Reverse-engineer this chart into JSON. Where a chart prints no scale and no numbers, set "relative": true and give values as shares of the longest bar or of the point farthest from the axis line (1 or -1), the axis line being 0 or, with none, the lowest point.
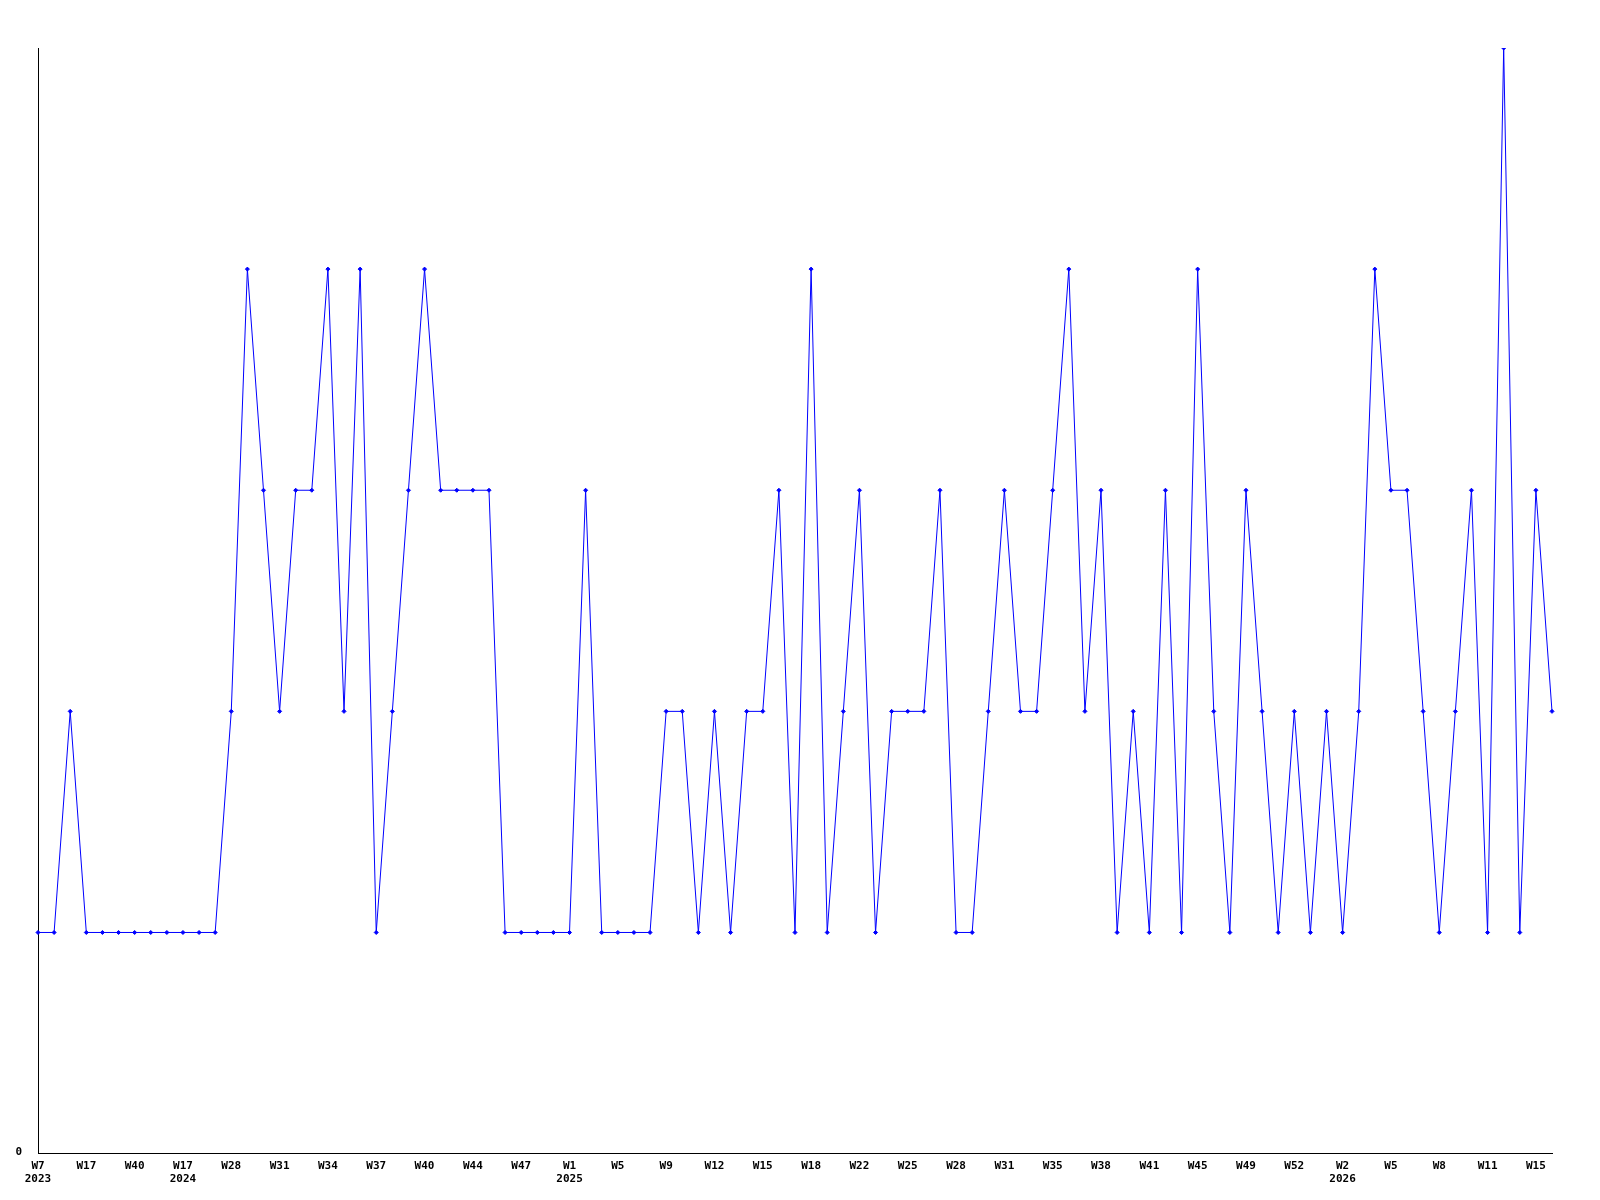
{
  "chart_data": {
    "type": "line",
    "relative": true,
    "annotations": [
      "0"
    ],
    "marker": "diamond",
    "grid": false,
    "legend": false,
    "categories": [
      "W7 2023",
      null,
      null,
      "W17",
      null,
      null,
      "W40",
      null,
      null,
      "W17 2024",
      null,
      null,
      "W28",
      null,
      null,
      "W31",
      null,
      null,
      "W34",
      null,
      null,
      "W37",
      null,
      null,
      "W40",
      null,
      null,
      "W44",
      null,
      null,
      "W47",
      null,
      null,
      "W1 2025",
      null,
      null,
      "W5",
      null,
      null,
      "W9",
      null,
      null,
      "W12",
      null,
      null,
      "W15",
      null,
      null,
      "W18",
      null,
      null,
      "W22",
      null,
      null,
      "W25",
      null,
      null,
      "W28",
      null,
      null,
      "W31",
      null,
      null,
      "W35",
      null,
      null,
      "W38",
      null,
      null,
      "W41",
      null,
      null,
      "W45",
      null,
      null,
      "W49",
      null,
      null,
      "W52",
      null,
      null,
      "W2 2026",
      null,
      null,
      "W5",
      null,
      null,
      "W8",
      null,
      null,
      "W11",
      null,
      null,
      "W15",
      null
    ],
    "series": [
      {
        "color": "#0000ff",
        "values": [
          0.2,
          0.2,
          0.4,
          0.2,
          0.2,
          0.2,
          0.2,
          0.2,
          0.2,
          0.2,
          0.2,
          0.2,
          0.4,
          0.8,
          0.6,
          0.4,
          0.6,
          0.6,
          0.8,
          0.4,
          0.8,
          0.2,
          0.4,
          0.6,
          0.8,
          0.6,
          0.6,
          0.6,
          0.6,
          0.2,
          0.2,
          0.2,
          0.2,
          0.2,
          0.6,
          0.2,
          0.2,
          0.2,
          0.2,
          0.4,
          0.4,
          0.2,
          0.4,
          0.2,
          0.4,
          0.4,
          0.6,
          0.2,
          0.8,
          0.2,
          0.4,
          0.6,
          0.2,
          0.4,
          0.4,
          0.4,
          0.6,
          0.2,
          0.2,
          0.4,
          0.6,
          0.4,
          0.4,
          0.6,
          0.8,
          0.4,
          0.6,
          0.2,
          0.4,
          0.2,
          0.6,
          0.2,
          0.8,
          0.4,
          0.2,
          0.6,
          0.4,
          0.2,
          0.4,
          0.2,
          0.4,
          0.2,
          0.4,
          0.8,
          0.6,
          0.6,
          0.4,
          0.2,
          0.4,
          0.6,
          0.2,
          1,
          0.2,
          0.6,
          0.4
        ]
      }
    ]
  }
}
